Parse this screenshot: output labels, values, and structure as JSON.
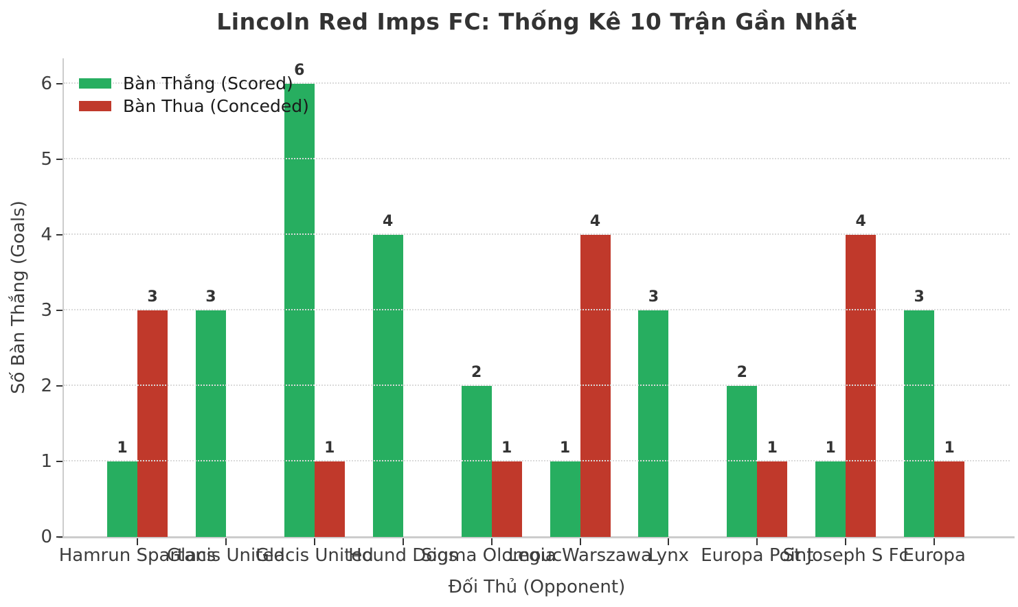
{
  "chart_data": {
    "type": "bar",
    "title": "Lincoln Red Imps FC: Thống Kê 10 Trận Gần Nhất",
    "xlabel": "Đối Thủ (Opponent)",
    "ylabel": "Số Bàn Thắng (Goals)",
    "categories": [
      "Hamrun Spartans",
      "Glacis United",
      "Glacis United",
      "Hound Dogs",
      "Sigma Olomouc",
      "Legia Warszawa",
      "Lynx",
      "Europa Point",
      "St Joseph S Fc",
      "Europa"
    ],
    "series": [
      {
        "name": "Bàn Thắng (Scored)",
        "color": "#27ae60",
        "values": [
          1,
          3,
          6,
          4,
          2,
          1,
          3,
          2,
          1,
          3
        ]
      },
      {
        "name": "Bàn Thua (Conceded)",
        "color": "#c0392b",
        "values": [
          3,
          0,
          1,
          0,
          1,
          4,
          0,
          1,
          4,
          1
        ]
      }
    ],
    "yticks": [
      0,
      1,
      2,
      3,
      4,
      5,
      6
    ],
    "ylim": [
      0,
      6.34
    ],
    "grid": "horizontal-dotted",
    "legend_position": "upper-left",
    "bar_value_labels": true,
    "hide_zero_value_bars": true,
    "colors": {
      "scored": "#27ae60",
      "conceded": "#c0392b",
      "spine": "#cccccc",
      "gridline": "#dadada",
      "text": "#3d3d3d",
      "title_text": "#333333",
      "background": "#ffffff"
    }
  }
}
